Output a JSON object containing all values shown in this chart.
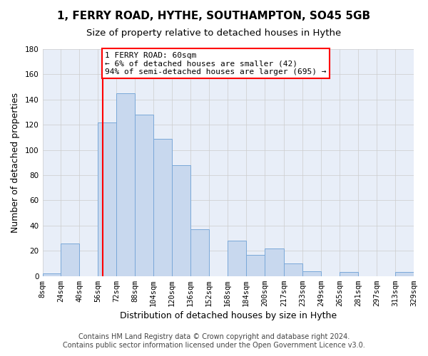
{
  "title": "1, FERRY ROAD, HYTHE, SOUTHAMPTON, SO45 5GB",
  "subtitle": "Size of property relative to detached houses in Hythe",
  "xlabel": "Distribution of detached houses by size in Hythe",
  "ylabel": "Number of detached properties",
  "footer1": "Contains HM Land Registry data © Crown copyright and database right 2024.",
  "footer2": "Contains public sector information licensed under the Open Government Licence v3.0.",
  "bin_edges": [
    8,
    24,
    40,
    56,
    72,
    88,
    104,
    120,
    136,
    152,
    168,
    184,
    200,
    217,
    233,
    249,
    265,
    281,
    297,
    313,
    329
  ],
  "bin_labels": [
    "8sqm",
    "24sqm",
    "40sqm",
    "56sqm",
    "72sqm",
    "88sqm",
    "104sqm",
    "120sqm",
    "136sqm",
    "152sqm",
    "168sqm",
    "184sqm",
    "200sqm",
    "217sqm",
    "233sqm",
    "249sqm",
    "265sqm",
    "281sqm",
    "297sqm",
    "313sqm",
    "329sqm"
  ],
  "counts": [
    2,
    26,
    0,
    122,
    145,
    128,
    109,
    88,
    37,
    0,
    28,
    17,
    22,
    10,
    4,
    0,
    3,
    0,
    0,
    3
  ],
  "bar_color": "#c8d8ee",
  "bar_edge_color": "#7aa8d8",
  "reference_line_x": 60,
  "reference_line_color": "red",
  "annotation_text": "1 FERRY ROAD: 60sqm\n← 6% of detached houses are smaller (42)\n94% of semi-detached houses are larger (695) →",
  "annotation_box_color": "red",
  "ylim": [
    0,
    180
  ],
  "yticks": [
    0,
    20,
    40,
    60,
    80,
    100,
    120,
    140,
    160,
    180
  ],
  "grid_color": "#cccccc",
  "bg_color": "#ffffff",
  "plot_bg_color": "#e8eef8",
  "title_fontsize": 11,
  "subtitle_fontsize": 9.5,
  "label_fontsize": 9,
  "tick_fontsize": 7.5,
  "footer_fontsize": 7
}
